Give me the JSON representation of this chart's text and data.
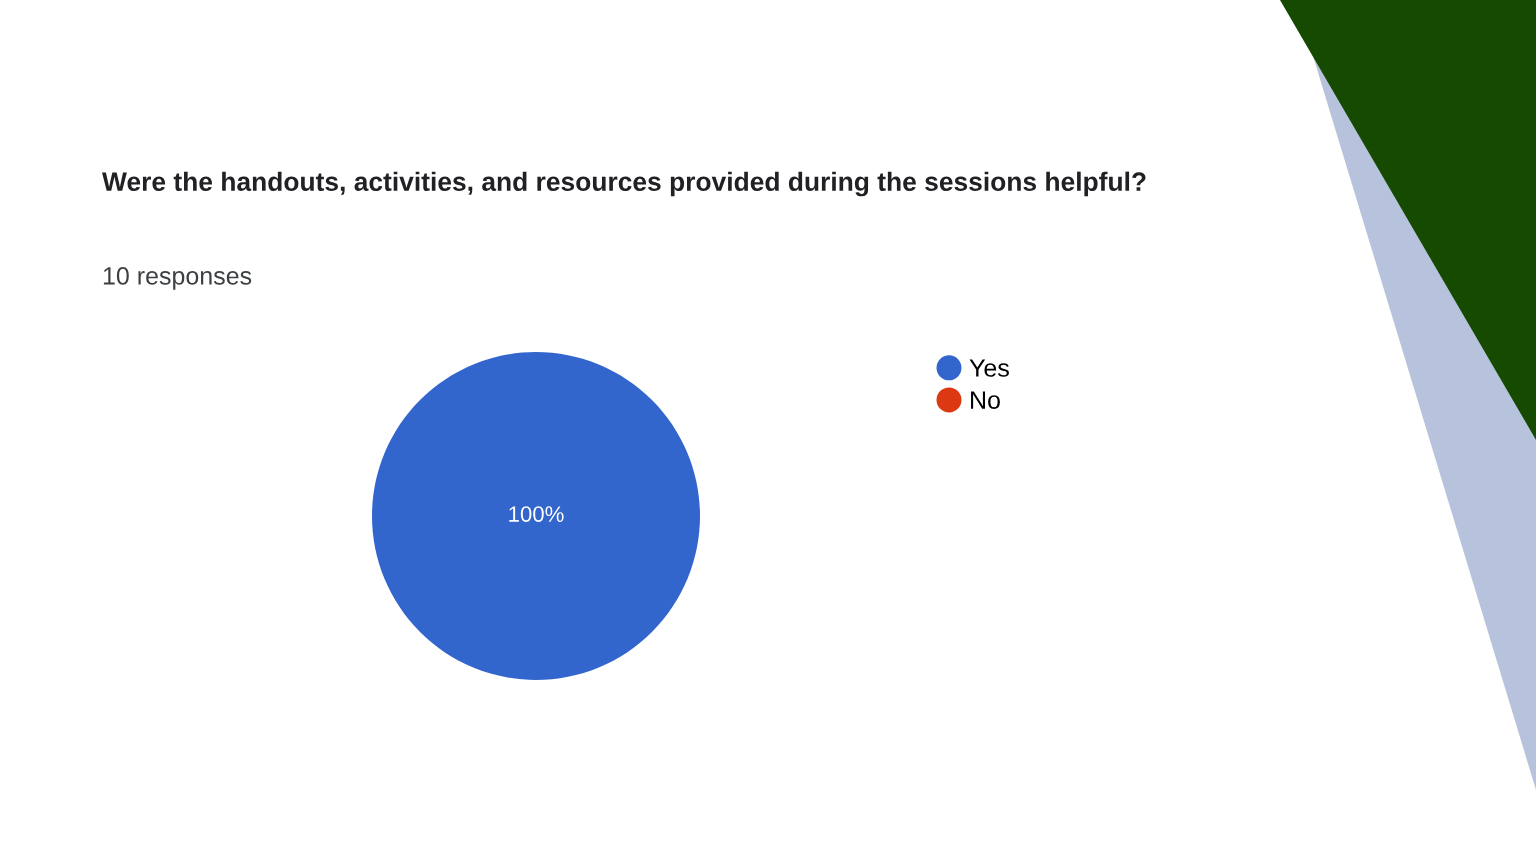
{
  "chart_data": {
    "type": "pie",
    "title": "Were the handouts, activities, and resources provided during the sessions helpful?",
    "subtitle": "10 responses",
    "categories": [
      "Yes",
      "No"
    ],
    "values": [
      100,
      0
    ],
    "colors": [
      "#3366cc",
      "#dc3912"
    ],
    "value_labels": [
      "100%",
      null
    ],
    "legend": "right"
  }
}
